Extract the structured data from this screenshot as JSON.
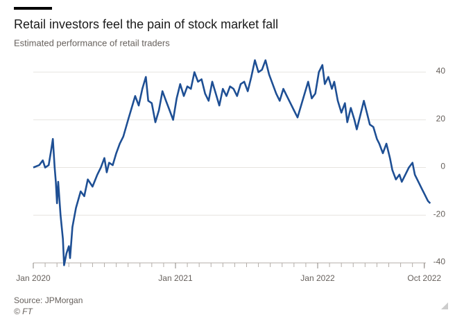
{
  "chart_data": {
    "type": "line",
    "title": "Retail investors feel the pain of stock market fall",
    "subtitle": "Estimated performance of retail traders",
    "source": "Source: JPMorgan",
    "credit": "© FT",
    "xlim": [
      0,
      33.6
    ],
    "xticks": [
      {
        "value": 0,
        "label": "Jan 2020"
      },
      {
        "value": 12,
        "label": "Jan 2021"
      },
      {
        "value": 24,
        "label": "Jan 2022"
      },
      {
        "value": 33,
        "label": "Oct 2022"
      }
    ],
    "xminorticks": [
      0,
      1,
      2,
      3,
      4,
      5,
      6,
      7,
      8,
      9,
      10,
      11,
      12,
      13,
      14,
      15,
      16,
      17,
      18,
      19,
      20,
      21,
      22,
      23,
      24,
      25,
      26,
      27,
      28,
      29,
      30,
      31,
      32,
      33
    ],
    "ylim": [
      -40,
      40
    ],
    "yticks": [
      40,
      20,
      0,
      -20,
      -40
    ],
    "grid": true,
    "series": [
      {
        "name": "Retail traders",
        "color": "#1e4f94",
        "x": [
          0,
          0.5,
          0.8,
          1.0,
          1.3,
          1.5,
          1.65,
          1.8,
          1.9,
          2.0,
          2.1,
          2.3,
          2.5,
          2.6,
          2.8,
          3.0,
          3.1,
          3.3,
          3.6,
          4.0,
          4.3,
          4.6,
          5.0,
          5.4,
          5.7,
          6.0,
          6.2,
          6.4,
          6.7,
          7.0,
          7.3,
          7.6,
          8.0,
          8.3,
          8.6,
          8.9,
          9.2,
          9.5,
          9.7,
          10.0,
          10.3,
          10.6,
          10.9,
          11.2,
          11.5,
          11.8,
          12.1,
          12.4,
          12.7,
          13.0,
          13.3,
          13.6,
          13.9,
          14.2,
          14.5,
          14.8,
          15.1,
          15.4,
          15.7,
          16.0,
          16.3,
          16.6,
          16.9,
          17.2,
          17.5,
          17.8,
          18.1,
          18.4,
          18.7,
          19.0,
          19.3,
          19.6,
          19.9,
          20.2,
          20.5,
          20.8,
          21.1,
          21.4,
          21.7,
          22.0,
          22.3,
          22.6,
          22.9,
          23.2,
          23.5,
          23.8,
          24.1,
          24.4,
          24.6,
          24.9,
          25.2,
          25.4,
          25.7,
          26.0,
          26.3,
          26.5,
          26.8,
          27.1,
          27.3,
          27.6,
          27.9,
          28.2,
          28.4,
          28.7,
          29.0,
          29.2,
          29.5,
          29.8,
          30.1,
          30.3,
          30.6,
          30.9,
          31.1,
          31.4,
          31.7,
          32.0,
          32.2,
          32.5,
          32.8,
          33.0,
          33.3,
          33.5
        ],
        "values": [
          0,
          1,
          3,
          0,
          1,
          7,
          12,
          0,
          -6,
          -15,
          -6,
          -20,
          -30,
          -41,
          -36,
          -33,
          -38,
          -25,
          -17,
          -10,
          -12,
          -5,
          -8,
          -3,
          0,
          4,
          -2,
          2,
          1,
          6,
          10,
          13,
          20,
          25,
          30,
          26,
          33,
          38,
          28,
          27,
          19,
          24,
          32,
          28,
          24,
          20,
          29,
          35,
          30,
          34,
          33,
          40,
          36,
          37,
          31,
          28,
          36,
          31,
          26,
          33,
          30,
          34,
          33,
          30,
          35,
          36,
          32,
          38,
          45,
          40,
          41,
          45,
          39,
          35,
          31,
          28,
          33,
          30,
          27,
          24,
          21,
          26,
          31,
          36,
          29,
          31,
          40,
          43,
          35,
          38,
          33,
          36,
          28,
          23,
          27,
          19,
          25,
          20,
          16,
          22,
          28,
          22,
          18,
          17,
          12,
          10,
          6,
          10,
          4,
          -1,
          -5,
          -3,
          -6,
          -3,
          0,
          2,
          -3,
          -6,
          -9,
          -11,
          -14,
          -15
        ]
      }
    ]
  }
}
